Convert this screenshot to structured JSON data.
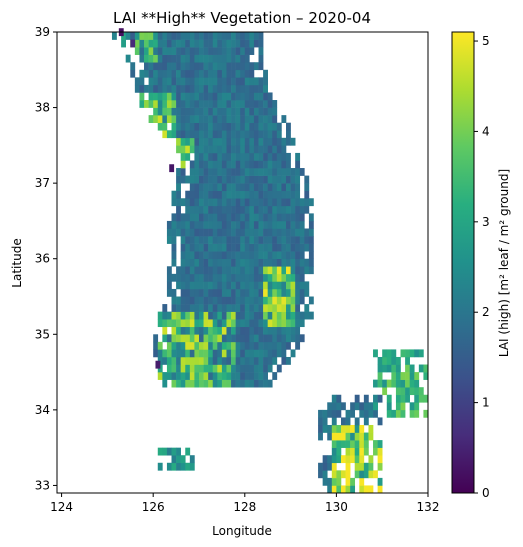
{
  "chart_data": {
    "type": "heatmap",
    "title": "LAI **High** Vegetation – 2020-04",
    "xlabel": "Longitude",
    "ylabel": "Latitude",
    "xlim": [
      123.9,
      132.0
    ],
    "ylim": [
      32.9,
      39.0
    ],
    "xticks": [
      124,
      126,
      128,
      130,
      132
    ],
    "yticks": [
      33,
      34,
      35,
      36,
      37,
      38,
      39
    ],
    "grid": false,
    "colorbar": {
      "label": "LAI (high)  [m² leaf / m² ground]",
      "range": [
        0,
        5.1
      ],
      "ticks": [
        0,
        1,
        2,
        3,
        4,
        5
      ],
      "colormap": "viridis"
    },
    "cell_size_deg": 0.1,
    "fill_value": 1.9,
    "regions": [
      {
        "name": "korean-peninsula-mainland",
        "lat_min": 34.3,
        "lat_max": 39.0,
        "lon_edges": [
          [
            34.3,
            126.1,
            128.5
          ],
          [
            34.8,
            126.0,
            129.1
          ],
          [
            35.2,
            126.1,
            129.4
          ],
          [
            35.6,
            126.3,
            129.5
          ],
          [
            36.0,
            126.3,
            129.5
          ],
          [
            36.5,
            126.3,
            129.5
          ],
          [
            37.0,
            126.5,
            129.4
          ],
          [
            37.4,
            126.6,
            129.1
          ],
          [
            37.8,
            126.0,
            128.9
          ],
          [
            38.2,
            125.6,
            128.6
          ],
          [
            38.6,
            125.5,
            128.3
          ],
          [
            39.0,
            125.0,
            128.4
          ]
        ]
      },
      {
        "name": "jeju-island",
        "lat_min": 33.2,
        "lat_max": 33.5,
        "lon_min": 126.1,
        "lon_max": 126.9
      },
      {
        "name": "kyushu-north",
        "lat_min": 32.9,
        "lat_max": 34.2,
        "lon_min": 129.6,
        "lon_max": 131.0
      },
      {
        "name": "honshu-west",
        "lat_min": 33.9,
        "lat_max": 34.8,
        "lon_min": 130.8,
        "lon_max": 132.0
      }
    ],
    "value_patches": [
      {
        "region": "korean-peninsula-mainland",
        "lat": [
          34.3,
          35.3
        ],
        "lon": [
          126.1,
          127.7
        ],
        "mean": 3.2,
        "spread": 1.6
      },
      {
        "region": "korean-peninsula-mainland",
        "lat": [
          35.1,
          35.9
        ],
        "lon": [
          128.3,
          129.0
        ],
        "mean": 3.6,
        "spread": 1.4
      },
      {
        "region": "korean-peninsula-mainland",
        "lat": [
          37.2,
          37.6
        ],
        "lon": [
          126.4,
          126.8
        ],
        "mean": 3.9,
        "spread": 1.2
      },
      {
        "region": "korean-peninsula-mainland",
        "lat": [
          37.6,
          38.2
        ],
        "lon": [
          125.6,
          126.4
        ],
        "mean": 3.4,
        "spread": 1.4
      },
      {
        "region": "korean-peninsula-mainland",
        "lat": [
          38.6,
          39.0
        ],
        "lon": [
          125.0,
          126.0
        ],
        "mean": 3.0,
        "spread": 1.6
      },
      {
        "region": "kyushu-north",
        "lat": [
          32.9,
          33.8
        ],
        "lon": [
          129.8,
          131.0
        ],
        "mean": 4.0,
        "spread": 1.6
      },
      {
        "region": "honshu-west",
        "lat": [
          33.9,
          34.8
        ],
        "lon": [
          130.8,
          132.0
        ],
        "mean": 3.3,
        "spread": 0.8
      },
      {
        "region": "jeju-island",
        "lat": [
          33.2,
          33.5
        ],
        "lon": [
          126.1,
          126.9
        ],
        "mean": 2.6,
        "spread": 0.6
      }
    ],
    "low_value_cells": [
      {
        "lat": 38.95,
        "lon": 125.25,
        "value": 0.2
      },
      {
        "lat": 38.8,
        "lon": 125.5,
        "value": 0.6
      },
      {
        "lat": 37.15,
        "lon": 126.35,
        "value": 0.3
      },
      {
        "lat": 34.55,
        "lon": 126.05,
        "value": 0.4
      }
    ]
  }
}
